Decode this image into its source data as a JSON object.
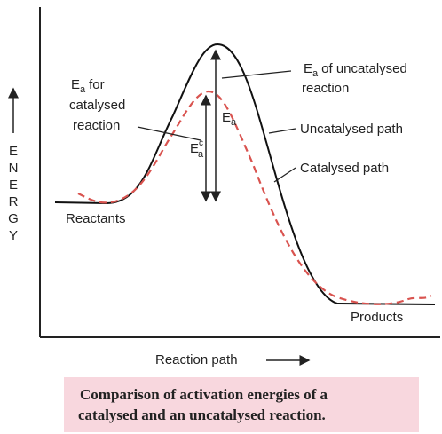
{
  "diagram": {
    "axis_y_label": "ENERGY",
    "axis_x_label": "Reaction path",
    "ea_catalysed": {
      "symbol": "E",
      "subscript": "a",
      "lines": [
        "for",
        "catalysed",
        "reaction"
      ]
    },
    "ea_uncatalysed": {
      "symbol": "E",
      "subscript": "a",
      "lines": [
        "of uncatalysed",
        "reaction"
      ]
    },
    "uncatalysed_path": "Uncatalysed path",
    "catalysed_path": "Catalysed path",
    "reactants": "Reactants",
    "products": "Products",
    "arrow_ea": {
      "symbol": "E",
      "subscript": "a"
    },
    "arrow_ea_cat": {
      "symbol": "E",
      "subscript": "a",
      "superscript": "c"
    }
  },
  "caption": {
    "lines": [
      "Comparison of activation energies of a",
      "catalysed and an uncatalysed reaction."
    ]
  }
}
